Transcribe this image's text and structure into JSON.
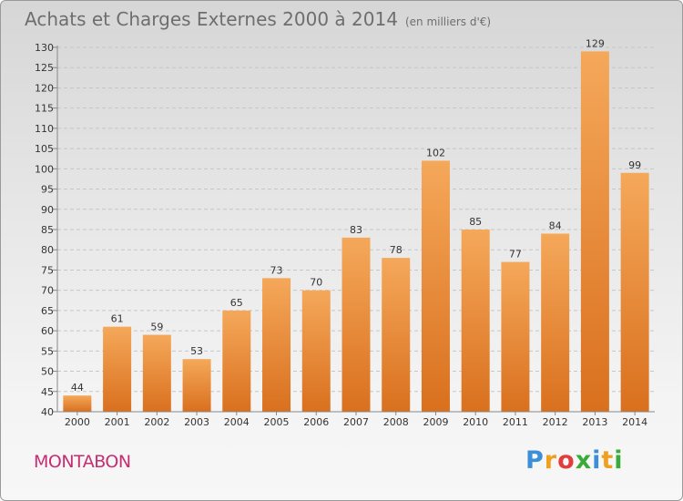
{
  "title": "Achats et Charges Externes 2000 à 2014",
  "unit": "(en milliers d'€)",
  "commune": "MONTABON",
  "logo": {
    "letters": [
      "P",
      "r",
      "o",
      "x",
      "i",
      "t",
      "i"
    ],
    "colors": [
      "#3a8fd6",
      "#f0a020",
      "#e33c3c",
      "#3aaa3a",
      "#3a8fd6",
      "#f0a020",
      "#3aaa3a"
    ]
  },
  "colors": {
    "bar_light": "#f5a85a",
    "bar_dark": "#d9701e",
    "title": "#6e6e6e",
    "commune": "#c42e73"
  },
  "chart_data": {
    "type": "bar",
    "categories": [
      "2000",
      "2001",
      "2002",
      "2003",
      "2004",
      "2005",
      "2006",
      "2007",
      "2008",
      "2009",
      "2010",
      "2011",
      "2012",
      "2013",
      "2014"
    ],
    "values": [
      44,
      61,
      59,
      53,
      65,
      73,
      70,
      83,
      78,
      102,
      85,
      77,
      84,
      129,
      99
    ],
    "title": "Achats et Charges Externes 2000 à 2014",
    "xlabel": "",
    "ylabel": "",
    "ylim": [
      40,
      130
    ],
    "yticks": [
      40,
      45,
      50,
      55,
      60,
      65,
      70,
      75,
      80,
      85,
      90,
      95,
      100,
      105,
      110,
      115,
      120,
      125,
      130
    ],
    "grid": true
  }
}
